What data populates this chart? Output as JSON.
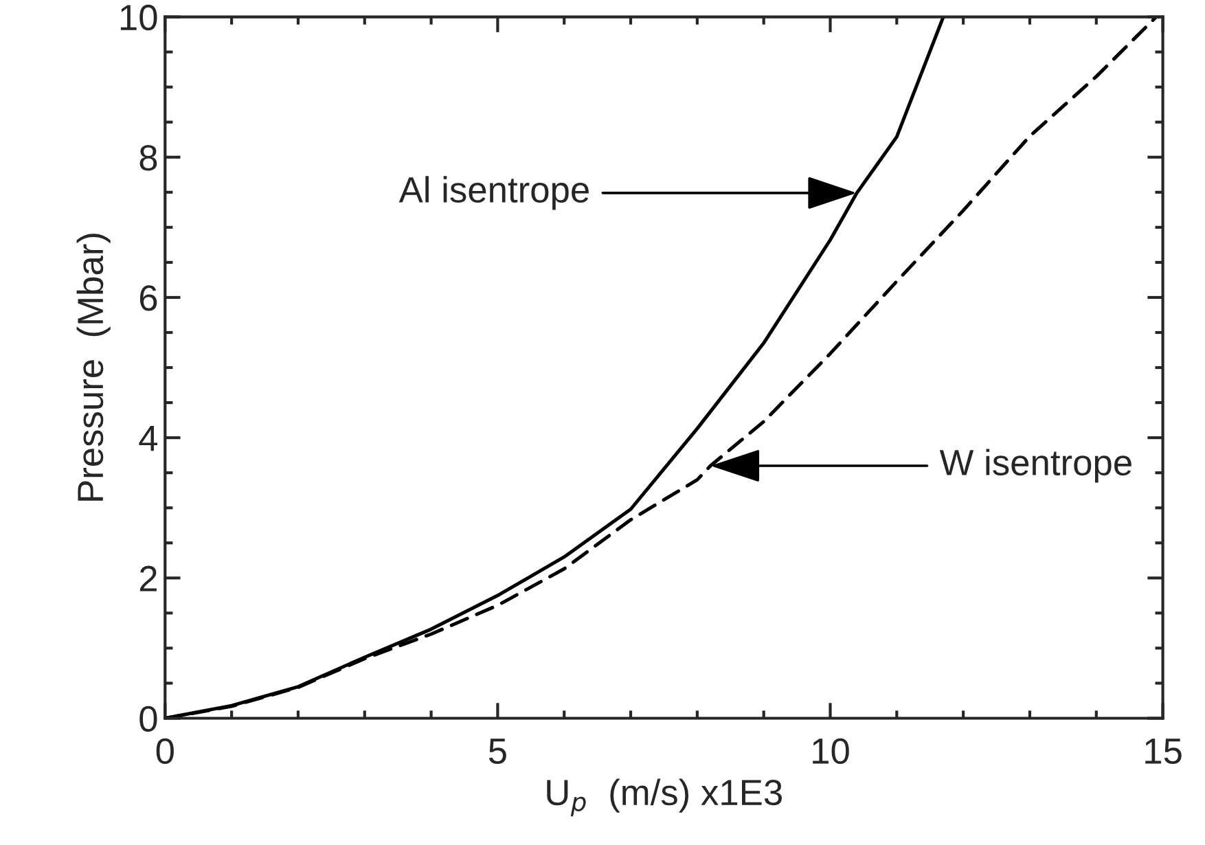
{
  "chart_data": {
    "type": "line",
    "xlabel": "U$_{p}$  (m/s) x1E3",
    "ylabel": "Pressure  (Mbar)",
    "xlim": [
      0,
      15
    ],
    "ylim": [
      0,
      10
    ],
    "xticks": [
      0,
      5,
      10,
      15
    ],
    "yticks": [
      0,
      2,
      4,
      6,
      8,
      10
    ],
    "grid": false,
    "legend": false,
    "marker": "none",
    "series": [
      {
        "color": "#000000",
        "line_style": "solid",
        "x": [
          0,
          1,
          2,
          3,
          4,
          5,
          6,
          7,
          8,
          9,
          10,
          10.4,
          11,
          11.7
        ],
        "values": [
          0,
          0.18,
          0.45,
          0.87,
          1.27,
          1.75,
          2.3,
          2.98,
          4.13,
          5.35,
          6.82,
          7.49,
          8.29,
          10
        ]
      },
      {
        "color": "#000000",
        "line_style": "dashed",
        "x": [
          0,
          1,
          2,
          3,
          4,
          5,
          6,
          7,
          8,
          8.2,
          9,
          10,
          11,
          12,
          13,
          14,
          14.9
        ],
        "values": [
          0,
          0.17,
          0.44,
          0.85,
          1.2,
          1.61,
          2.13,
          2.83,
          3.4,
          3.6,
          4.23,
          5.2,
          6.23,
          7.24,
          8.3,
          9.15,
          10
        ]
      }
    ],
    "annotations": [
      {
        "text": "Al isentrope",
        "x": 10.4,
        "y": 7.49
      },
      {
        "text": "W isentrope",
        "x": 8.2,
        "y": 3.6
      }
    ]
  }
}
